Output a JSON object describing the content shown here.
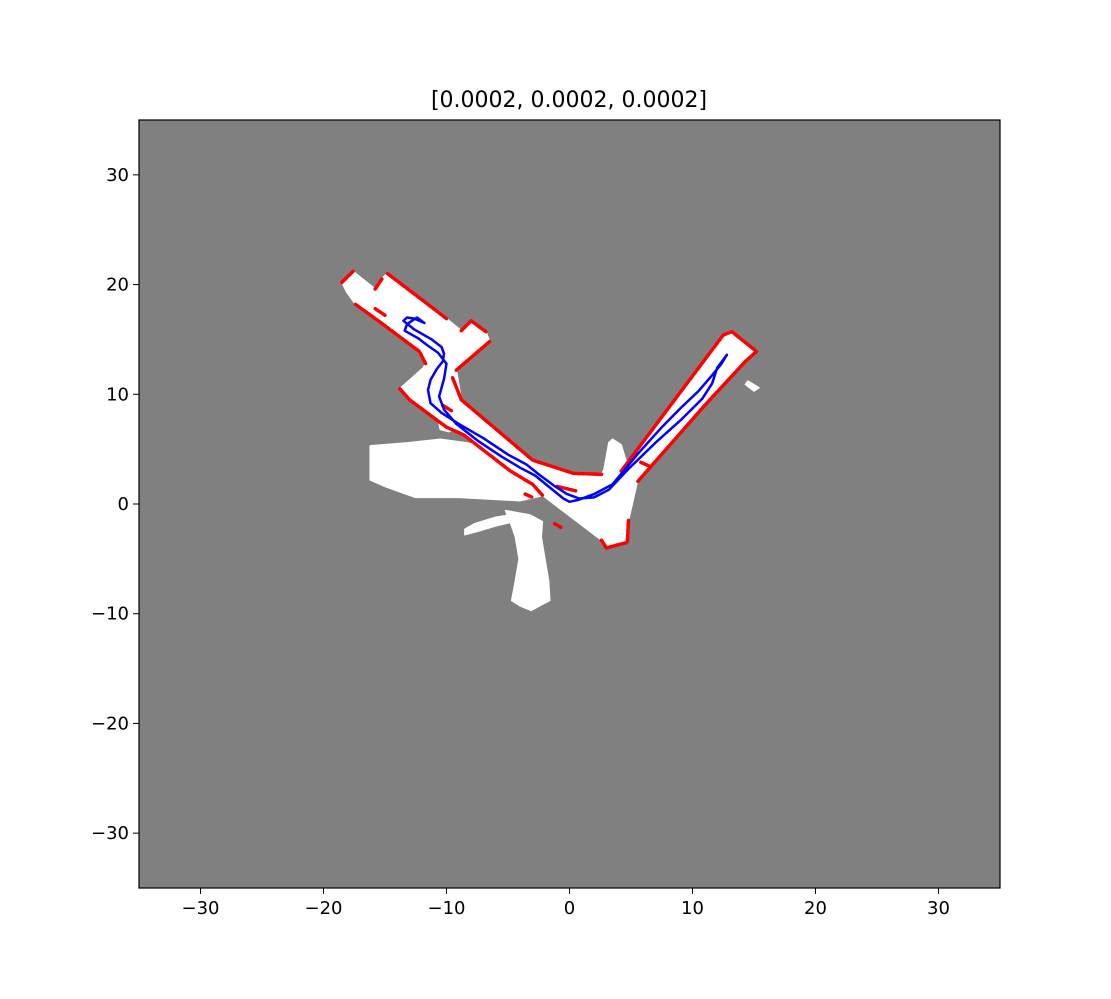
{
  "chart_data": {
    "type": "scatter",
    "title": "[0.0002, 0.0002, 0.0002]",
    "xlabel": "",
    "ylabel": "",
    "xlim": [
      -35,
      35
    ],
    "ylim": [
      -35,
      35
    ],
    "xticks": [
      -30,
      -20,
      -10,
      0,
      10,
      20,
      30
    ],
    "yticks": [
      30,
      20,
      10,
      0,
      -10,
      -20,
      -30
    ],
    "xtick_labels": [
      "−30",
      "−20",
      "−10",
      "0",
      "10",
      "20",
      "30"
    ],
    "ytick_labels": [
      "30",
      "20",
      "10",
      "0",
      "−10",
      "−20",
      "−30"
    ],
    "grid": false,
    "colors": {
      "unknown": "#808080",
      "free": "#ffffff",
      "occupied": "#ff0000",
      "trajectory": "#0000ff"
    },
    "free_space_polygons": [
      [
        [
          -18.5,
          20.2
        ],
        [
          -17.6,
          21.2
        ],
        [
          -15.8,
          19.6
        ],
        [
          -15.2,
          20.6
        ],
        [
          -14.8,
          21.0
        ],
        [
          -12.8,
          19.3
        ],
        [
          -10.0,
          16.9
        ],
        [
          -8.8,
          15.8
        ],
        [
          -8.0,
          16.7
        ],
        [
          -6.8,
          15.7
        ],
        [
          -6.5,
          14.8
        ],
        [
          -9.2,
          12.2
        ],
        [
          -8.8,
          9.5
        ],
        [
          -3.0,
          4.0
        ],
        [
          0.3,
          2.8
        ],
        [
          2.6,
          2.7
        ],
        [
          3.5,
          4.6
        ],
        [
          4.2,
          3.0
        ],
        [
          12.5,
          15.4
        ],
        [
          13.2,
          15.7
        ],
        [
          15.2,
          13.9
        ],
        [
          14.3,
          13.0
        ],
        [
          11.0,
          9.0
        ],
        [
          5.5,
          2.0
        ],
        [
          4.8,
          -1.5
        ],
        [
          4.7,
          -3.5
        ],
        [
          3.0,
          -4.0
        ],
        [
          2.6,
          -3.3
        ],
        [
          -2.2,
          0.8
        ],
        [
          -3.0,
          1.8
        ],
        [
          -4.8,
          3.0
        ],
        [
          -8.6,
          6.3
        ],
        [
          -10.0,
          7.0
        ],
        [
          -13.0,
          9.5
        ],
        [
          -13.8,
          10.5
        ],
        [
          -12.8,
          11.5
        ],
        [
          -11.9,
          12.4
        ],
        [
          -11.7,
          12.8
        ],
        [
          -12.2,
          13.9
        ],
        [
          -15.3,
          16.5
        ],
        [
          -17.4,
          18.2
        ],
        [
          -18.1,
          19.3
        ]
      ],
      [
        [
          -16.2,
          5.3
        ],
        [
          -13.0,
          5.6
        ],
        [
          -10.5,
          5.9
        ],
        [
          -8.5,
          5.6
        ],
        [
          -7.0,
          5.3
        ],
        [
          -5.0,
          4.0
        ],
        [
          -4.0,
          3.6
        ],
        [
          -2.0,
          0.8
        ],
        [
          -4.0,
          0.3
        ],
        [
          -9.0,
          0.6
        ],
        [
          -12.5,
          0.6
        ],
        [
          -13.3,
          0.9
        ],
        [
          -15.0,
          1.6
        ],
        [
          -16.2,
          2.2
        ]
      ],
      [
        [
          -8.5,
          -2.8
        ],
        [
          -7.5,
          -2.5
        ],
        [
          -6.0,
          -2.0
        ],
        [
          -4.5,
          -1.6
        ],
        [
          -3.8,
          -1.3
        ],
        [
          -4.3,
          -0.9
        ],
        [
          -6.0,
          -1.2
        ],
        [
          -7.7,
          -1.8
        ],
        [
          -8.5,
          -2.3
        ]
      ],
      [
        [
          -5.2,
          -0.6
        ],
        [
          -4.8,
          -1.7
        ],
        [
          -4.4,
          -3.0
        ],
        [
          -4.1,
          -5.0
        ],
        [
          -4.4,
          -7.0
        ],
        [
          -4.7,
          -8.8
        ],
        [
          -4.0,
          -9.3
        ],
        [
          -3.1,
          -9.7
        ],
        [
          -2.3,
          -9.2
        ],
        [
          -1.6,
          -8.8
        ],
        [
          -1.7,
          -7.0
        ],
        [
          -2.0,
          -5.0
        ],
        [
          -2.3,
          -3.0
        ],
        [
          -2.2,
          -1.6
        ],
        [
          -3.2,
          -1.0
        ]
      ],
      [
        [
          -10.6,
          7.3
        ],
        [
          -9.8,
          7.1
        ],
        [
          -9.3,
          6.8
        ],
        [
          -9.8,
          6.6
        ],
        [
          -10.5,
          6.8
        ]
      ],
      [
        [
          2.8,
          3.1
        ],
        [
          3.2,
          5.6
        ],
        [
          3.5,
          5.9
        ],
        [
          4.2,
          5.4
        ],
        [
          4.6,
          3.9
        ],
        [
          3.9,
          2.9
        ]
      ],
      [
        [
          14.5,
          11.2
        ],
        [
          15.4,
          10.6
        ],
        [
          15.0,
          10.3
        ],
        [
          14.3,
          10.9
        ]
      ]
    ],
    "wall_segments": [
      [
        [
          -18.5,
          20.2
        ],
        [
          -17.6,
          21.2
        ]
      ],
      [
        [
          -15.8,
          19.6
        ],
        [
          -15.2,
          20.6
        ]
      ],
      [
        [
          -14.8,
          21.0
        ],
        [
          -12.8,
          19.3
        ],
        [
          -10.0,
          16.9
        ]
      ],
      [
        [
          -8.8,
          15.8
        ],
        [
          -8.0,
          16.7
        ],
        [
          -6.8,
          15.7
        ]
      ],
      [
        [
          -6.5,
          14.8
        ],
        [
          -9.2,
          12.2
        ]
      ],
      [
        [
          -11.7,
          12.8
        ],
        [
          -12.2,
          13.9
        ],
        [
          -15.3,
          16.5
        ],
        [
          -17.4,
          18.2
        ]
      ],
      [
        [
          -13.8,
          10.5
        ],
        [
          -13.0,
          9.5
        ],
        [
          -10.0,
          7.0
        ],
        [
          -8.6,
          6.3
        ],
        [
          -4.8,
          3.0
        ],
        [
          -3.0,
          1.8
        ],
        [
          -2.2,
          0.8
        ]
      ],
      [
        [
          -9.5,
          11.5
        ],
        [
          -8.8,
          9.5
        ]
      ],
      [
        [
          -8.8,
          9.5
        ],
        [
          -3.0,
          4.0
        ],
        [
          0.3,
          2.8
        ],
        [
          2.6,
          2.7
        ]
      ],
      [
        [
          4.2,
          3.0
        ],
        [
          12.5,
          15.4
        ],
        [
          13.2,
          15.7
        ],
        [
          15.2,
          13.9
        ],
        [
          14.3,
          13.0
        ]
      ],
      [
        [
          14.3,
          13.0
        ],
        [
          11.0,
          9.0
        ],
        [
          5.5,
          2.0
        ]
      ],
      [
        [
          4.8,
          -1.5
        ],
        [
          4.7,
          -3.5
        ],
        [
          3.0,
          -4.0
        ],
        [
          2.6,
          -3.3
        ]
      ],
      [
        [
          -1.0,
          1.6
        ],
        [
          0.5,
          1.2
        ]
      ],
      [
        [
          -3.6,
          0.9
        ],
        [
          -3.0,
          0.6
        ]
      ],
      [
        [
          -15.8,
          17.8
        ],
        [
          -15.0,
          17.2
        ]
      ],
      [
        [
          -10.3,
          9.0
        ],
        [
          -9.6,
          8.5
        ]
      ],
      [
        [
          5.8,
          3.8
        ],
        [
          6.6,
          3.4
        ]
      ],
      [
        [
          -1.2,
          -1.8
        ],
        [
          -0.6,
          -2.2
        ]
      ]
    ],
    "trajectory": [
      [
        -11.8,
        16.5
      ],
      [
        -12.6,
        16.9
      ],
      [
        -13.2,
        17.0
      ],
      [
        -13.5,
        16.7
      ],
      [
        -12.6,
        15.9
      ],
      [
        -11.2,
        15.0
      ],
      [
        -10.4,
        14.3
      ],
      [
        -10.2,
        13.7
      ],
      [
        -10.3,
        13.0
      ],
      [
        -10.8,
        12.3
      ],
      [
        -11.3,
        11.3
      ],
      [
        -11.5,
        10.4
      ],
      [
        -11.3,
        9.2
      ],
      [
        -10.4,
        8.3
      ],
      [
        -9.0,
        7.3
      ],
      [
        -7.0,
        6.0
      ],
      [
        -5.0,
        4.5
      ],
      [
        -3.5,
        3.6
      ],
      [
        -2.5,
        2.7
      ],
      [
        -1.3,
        1.7
      ],
      [
        -0.2,
        0.9
      ],
      [
        0.8,
        0.5
      ],
      [
        2.0,
        0.6
      ],
      [
        3.2,
        1.3
      ],
      [
        4.8,
        3.2
      ],
      [
        7.0,
        5.6
      ],
      [
        9.0,
        7.6
      ],
      [
        10.8,
        9.6
      ],
      [
        11.6,
        11.0
      ],
      [
        12.0,
        12.4
      ],
      [
        12.8,
        13.6
      ],
      [
        12.3,
        12.7
      ],
      [
        11.5,
        11.6
      ],
      [
        10.5,
        10.3
      ],
      [
        9.0,
        8.7
      ],
      [
        7.5,
        7.0
      ],
      [
        5.5,
        4.5
      ],
      [
        3.5,
        1.8
      ],
      [
        2.0,
        0.9
      ],
      [
        0.8,
        0.4
      ],
      [
        0.0,
        0.2
      ],
      [
        -0.5,
        0.5
      ],
      [
        -1.6,
        1.5
      ],
      [
        -2.8,
        2.6
      ],
      [
        -4.0,
        3.3
      ],
      [
        -5.5,
        4.3
      ],
      [
        -7.5,
        5.8
      ],
      [
        -9.2,
        7.3
      ],
      [
        -10.2,
        8.6
      ],
      [
        -10.6,
        9.8
      ],
      [
        -10.2,
        11.4
      ],
      [
        -10.0,
        12.8
      ],
      [
        -10.7,
        13.8
      ],
      [
        -11.6,
        14.5
      ],
      [
        -12.3,
        15.1
      ],
      [
        -13.4,
        15.8
      ],
      [
        -13.2,
        16.4
      ],
      [
        -12.4,
        17.0
      ],
      [
        -11.8,
        16.5
      ]
    ]
  }
}
